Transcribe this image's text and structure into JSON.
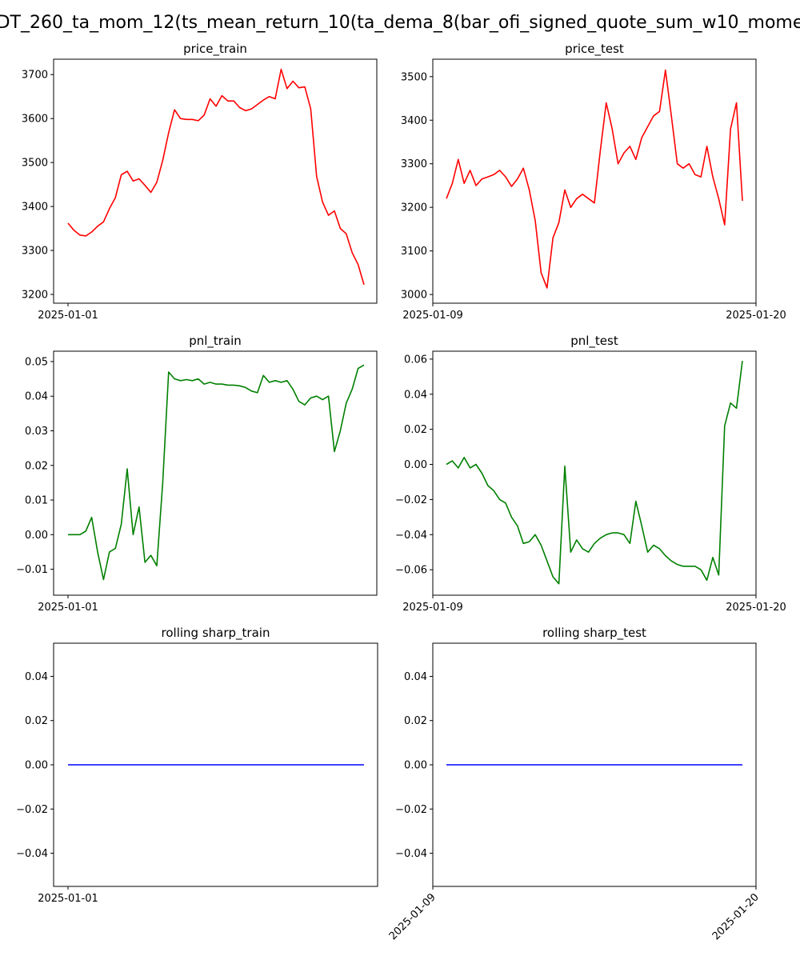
{
  "figure": {
    "suptitle": "DT_260_ta_mom_12(ts_mean_return_10(ta_dema_8(bar_ofi_signed_quote_sum_w10_mome"
  },
  "chart_data": [
    {
      "type": "line",
      "title": "price_train",
      "color": "#ff0000",
      "x_ticks": [
        "2025-01-01"
      ],
      "x_tick_rotation": 0,
      "ylim": [
        3180,
        3735
      ],
      "y_ticks": [
        3200,
        3300,
        3400,
        3500,
        3600,
        3700
      ],
      "y_tick_labels": [
        "3200",
        "3300",
        "3400",
        "3500",
        "3600",
        "3700"
      ],
      "grid": false,
      "x": [
        0,
        2,
        4,
        6,
        8,
        10,
        12,
        14,
        16,
        18,
        20,
        22,
        24,
        26,
        28,
        30,
        32,
        34,
        36,
        38,
        40,
        42,
        44,
        46,
        48,
        50,
        52,
        54,
        56,
        58,
        60,
        62,
        64,
        66,
        68,
        70,
        72,
        74,
        76,
        78,
        80,
        82,
        84,
        86,
        88,
        90,
        92,
        94,
        96,
        98,
        100
      ],
      "y": [
        3362,
        3346,
        3335,
        3333,
        3342,
        3355,
        3365,
        3395,
        3420,
        3472,
        3480,
        3458,
        3463,
        3448,
        3432,
        3455,
        3505,
        3568,
        3620,
        3600,
        3598,
        3598,
        3595,
        3608,
        3645,
        3628,
        3652,
        3640,
        3640,
        3625,
        3618,
        3622,
        3632,
        3642,
        3650,
        3645,
        3712,
        3668,
        3685,
        3670,
        3672,
        3622,
        3468,
        3410,
        3380,
        3390,
        3350,
        3338,
        3295,
        3268,
        3222
      ]
    },
    {
      "type": "line",
      "title": "price_test",
      "color": "#ff0000",
      "x_ticks": [
        "2025-01-09",
        "2025-01-20"
      ],
      "x_tick_rotation": 0,
      "ylim": [
        2980,
        3540
      ],
      "y_ticks": [
        3000,
        3100,
        3200,
        3300,
        3400,
        3500
      ],
      "y_tick_labels": [
        "3000",
        "3100",
        "3200",
        "3300",
        "3400",
        "3500"
      ],
      "grid": false,
      "x": [
        0,
        2,
        4,
        6,
        8,
        10,
        12,
        14,
        16,
        18,
        20,
        22,
        24,
        26,
        28,
        30,
        32,
        34,
        36,
        38,
        40,
        42,
        44,
        46,
        48,
        50,
        52,
        54,
        56,
        58,
        60,
        62,
        64,
        66,
        68,
        70,
        72,
        74,
        76,
        78,
        80,
        82,
        84,
        86,
        88,
        90,
        92,
        94,
        96,
        98,
        100
      ],
      "y": [
        3220,
        3255,
        3310,
        3255,
        3285,
        3250,
        3265,
        3270,
        3275,
        3285,
        3270,
        3248,
        3265,
        3290,
        3240,
        3170,
        3050,
        3015,
        3130,
        3165,
        3240,
        3200,
        3220,
        3230,
        3220,
        3210,
        3330,
        3440,
        3380,
        3300,
        3325,
        3340,
        3310,
        3360,
        3385,
        3410,
        3420,
        3515,
        3410,
        3300,
        3290,
        3300,
        3275,
        3270,
        3340,
        3270,
        3220,
        3160,
        3380,
        3440,
        3215
      ]
    },
    {
      "type": "line",
      "title": "pnl_train",
      "color": "#008000",
      "x_ticks": [
        "2025-01-01"
      ],
      "x_tick_rotation": 0,
      "ylim": [
        -0.0175,
        0.053
      ],
      "y_ticks": [
        -0.01,
        0.0,
        0.01,
        0.02,
        0.03,
        0.04,
        0.05
      ],
      "y_tick_labels": [
        "−0.01",
        "0.00",
        "0.01",
        "0.02",
        "0.03",
        "0.04",
        "0.05"
      ],
      "grid": false,
      "x": [
        0,
        2,
        4,
        6,
        8,
        10,
        12,
        14,
        16,
        18,
        20,
        22,
        24,
        26,
        28,
        30,
        32,
        34,
        36,
        38,
        40,
        42,
        44,
        46,
        48,
        50,
        52,
        54,
        56,
        58,
        60,
        62,
        64,
        66,
        68,
        70,
        72,
        74,
        76,
        78,
        80,
        82,
        84,
        86,
        88,
        90,
        92,
        94,
        96,
        98,
        100
      ],
      "y": [
        0.0,
        0.0,
        0.0,
        0.001,
        0.005,
        -0.005,
        -0.013,
        -0.005,
        -0.004,
        0.003,
        0.019,
        0.0,
        0.008,
        -0.008,
        -0.006,
        -0.009,
        0.015,
        0.047,
        0.045,
        0.0445,
        0.0448,
        0.0445,
        0.045,
        0.0435,
        0.044,
        0.0435,
        0.0435,
        0.0432,
        0.0432,
        0.043,
        0.0425,
        0.0415,
        0.041,
        0.046,
        0.044,
        0.0445,
        0.044,
        0.0445,
        0.042,
        0.0385,
        0.0375,
        0.0395,
        0.04,
        0.039,
        0.04,
        0.024,
        0.03,
        0.038,
        0.042,
        0.048,
        0.049
      ]
    },
    {
      "type": "line",
      "title": "pnl_test",
      "color": "#008000",
      "x_ticks": [
        "2025-01-09",
        "2025-01-20"
      ],
      "x_tick_rotation": 0,
      "ylim": [
        -0.0745,
        0.0645
      ],
      "y_ticks": [
        -0.06,
        -0.04,
        -0.02,
        0.0,
        0.02,
        0.04,
        0.06
      ],
      "y_tick_labels": [
        "−0.06",
        "−0.04",
        "−0.02",
        "0.00",
        "0.02",
        "0.04",
        "0.06"
      ],
      "grid": false,
      "x": [
        0,
        2,
        4,
        6,
        8,
        10,
        12,
        14,
        16,
        18,
        20,
        22,
        24,
        26,
        28,
        30,
        32,
        34,
        36,
        38,
        40,
        42,
        44,
        46,
        48,
        50,
        52,
        54,
        56,
        58,
        60,
        62,
        64,
        66,
        68,
        70,
        72,
        74,
        76,
        78,
        80,
        82,
        84,
        86,
        88,
        90,
        92,
        94,
        96,
        98,
        100
      ],
      "y": [
        0.0,
        0.002,
        -0.002,
        0.004,
        -0.002,
        0.0,
        -0.005,
        -0.012,
        -0.015,
        -0.02,
        -0.022,
        -0.03,
        -0.035,
        -0.045,
        -0.044,
        -0.04,
        -0.046,
        -0.055,
        -0.064,
        -0.068,
        -0.001,
        -0.05,
        -0.043,
        -0.048,
        -0.05,
        -0.045,
        -0.042,
        -0.04,
        -0.039,
        -0.039,
        -0.04,
        -0.045,
        -0.021,
        -0.035,
        -0.05,
        -0.046,
        -0.048,
        -0.052,
        -0.055,
        -0.057,
        -0.058,
        -0.058,
        -0.058,
        -0.06,
        -0.066,
        -0.053,
        -0.063,
        0.022,
        0.035,
        0.032,
        0.059
      ]
    },
    {
      "type": "line",
      "title": "rolling sharp_train",
      "color": "#0000ff",
      "x_ticks": [
        "2025-01-01"
      ],
      "x_tick_rotation": 0,
      "ylim": [
        -0.055,
        0.055
      ],
      "y_ticks": [
        -0.04,
        -0.02,
        0.0,
        0.02,
        0.04
      ],
      "y_tick_labels": [
        "−0.04",
        "−0.02",
        "0.00",
        "0.02",
        "0.04"
      ],
      "grid": false,
      "x": [
        0,
        100
      ],
      "y": [
        0.0,
        0.0
      ]
    },
    {
      "type": "line",
      "title": "rolling sharp_test",
      "color": "#0000ff",
      "x_ticks": [
        "2025-01-09",
        "2025-01-20"
      ],
      "x_tick_rotation": -45,
      "ylim": [
        -0.055,
        0.055
      ],
      "y_ticks": [
        -0.04,
        -0.02,
        0.0,
        0.02,
        0.04
      ],
      "y_tick_labels": [
        "−0.04",
        "−0.02",
        "0.00",
        "0.02",
        "0.04"
      ],
      "grid": false,
      "x": [
        0,
        100
      ],
      "y": [
        0.0,
        0.0
      ]
    }
  ]
}
